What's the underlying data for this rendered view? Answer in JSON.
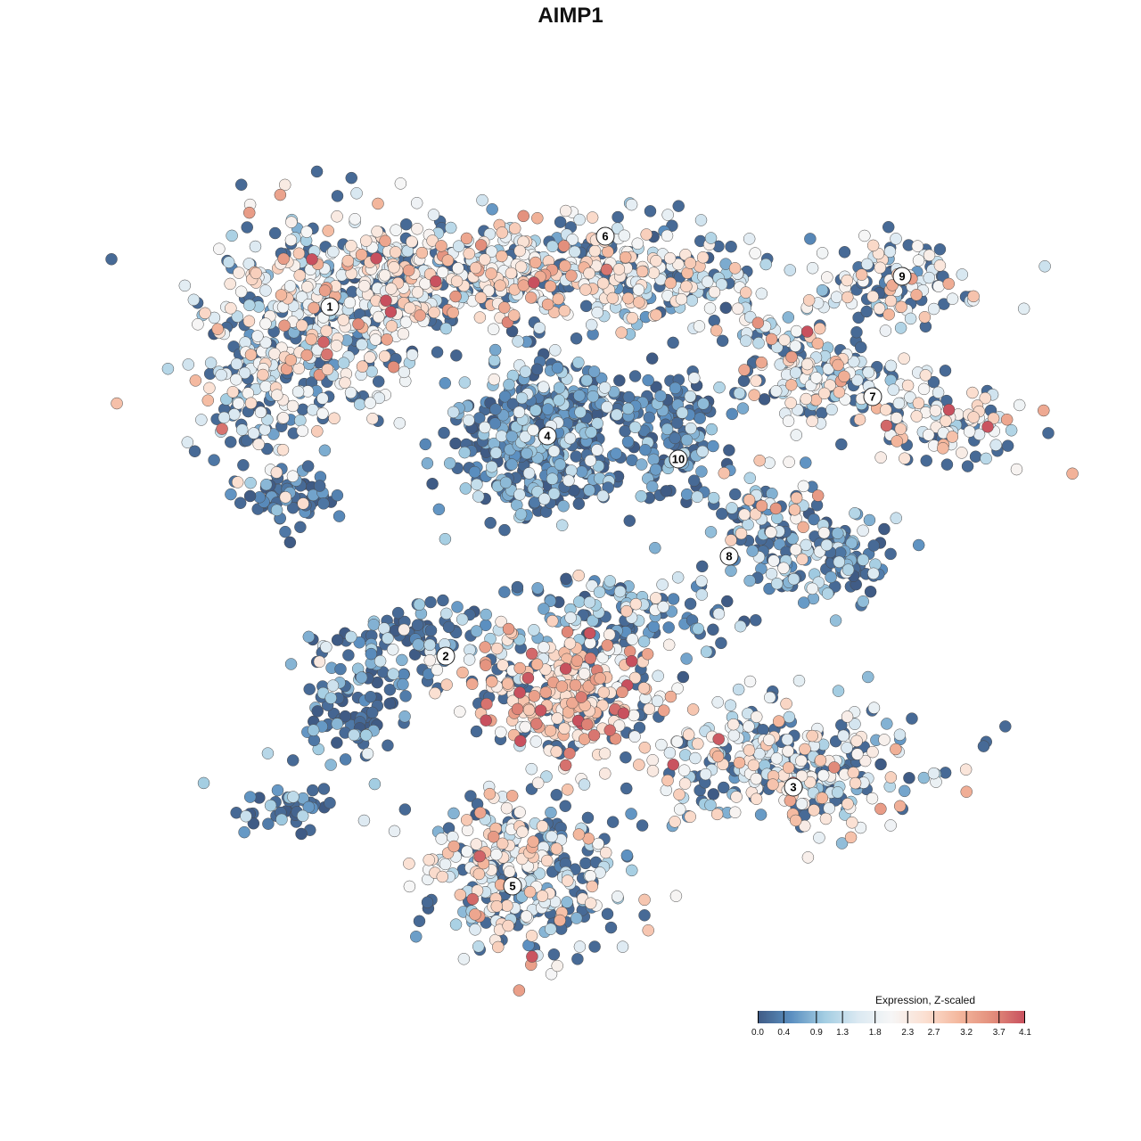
{
  "chart_data": {
    "type": "scatter",
    "title": "AIMP1",
    "xlim": [
      -64,
      64
    ],
    "ylim": [
      -64,
      64
    ],
    "grid": false,
    "axes_visible": false,
    "point_note_blobs": "density regions of the embedding; per-point values are sampled around the shown mean expression",
    "blobs": [
      {
        "cluster": "1",
        "cx": -28,
        "cy": 28,
        "sx": 9,
        "sy": 8,
        "n": 360,
        "mean": 1.8,
        "sd": 0.8
      },
      {
        "cluster": "1",
        "cx": -35,
        "cy": 20,
        "sx": 5,
        "sy": 6,
        "n": 110,
        "mean": 1.6,
        "sd": 0.8
      },
      {
        "cluster": "1",
        "cx": -31,
        "cy": 8,
        "sx": 4,
        "sy": 2,
        "n": 60,
        "mean": 0.3,
        "sd": 0.4
      },
      {
        "cluster": "1",
        "cx": -19,
        "cy": 32,
        "sx": 10,
        "sy": 4,
        "n": 160,
        "mean": 2.0,
        "sd": 0.8
      },
      {
        "cluster": "6",
        "cx": -5,
        "cy": 34,
        "sx": 14,
        "sy": 4,
        "n": 360,
        "mean": 2.0,
        "sd": 0.8
      },
      {
        "cluster": "6",
        "cx": 12,
        "cy": 32,
        "sx": 8,
        "sy": 4,
        "n": 120,
        "mean": 1.8,
        "sd": 0.8
      },
      {
        "cluster": "9",
        "cx": 36,
        "cy": 32,
        "sx": 6,
        "sy": 3.5,
        "n": 120,
        "mean": 1.9,
        "sd": 0.8
      },
      {
        "cluster": "7",
        "cx": 30,
        "cy": 21,
        "sx": 7,
        "sy": 3,
        "n": 120,
        "mean": 1.8,
        "sd": 0.8
      },
      {
        "cluster": "7",
        "cx": 42,
        "cy": 16,
        "sx": 6,
        "sy": 3,
        "n": 90,
        "mean": 2.2,
        "sd": 0.8
      },
      {
        "cluster": "7",
        "cx": 24,
        "cy": 25,
        "sx": 4,
        "sy": 3,
        "n": 50,
        "mean": 2.0,
        "sd": 0.8
      },
      {
        "cluster": "4",
        "cx": -3,
        "cy": 15,
        "sx": 6.5,
        "sy": 5.5,
        "n": 420,
        "mean": 0.6,
        "sd": 0.5
      },
      {
        "cluster": "10",
        "cx": 12,
        "cy": 12,
        "sx": 3,
        "sy": 4,
        "n": 70,
        "mean": 0.5,
        "sd": 0.5
      },
      {
        "cluster": "10",
        "cx": 10,
        "cy": 19,
        "sx": 7,
        "sy": 2,
        "n": 80,
        "mean": 0.4,
        "sd": 0.4
      },
      {
        "cluster": "8",
        "cx": 22,
        "cy": 7,
        "sx": 4,
        "sy": 4,
        "n": 70,
        "mean": 1.5,
        "sd": 1.0
      },
      {
        "cluster": "8",
        "cx": 29,
        "cy": 1,
        "sx": 5,
        "sy": 3,
        "n": 130,
        "mean": 0.8,
        "sd": 0.6
      },
      {
        "cluster": "2",
        "cx": -18,
        "cy": -8,
        "sx": 7,
        "sy": 3,
        "n": 100,
        "mean": 0.8,
        "sd": 0.6
      },
      {
        "cluster": "2",
        "cx": -24,
        "cy": -16,
        "sx": 4,
        "sy": 4,
        "n": 80,
        "mean": 0.5,
        "sd": 0.5
      },
      {
        "cluster": "2",
        "cx": -31,
        "cy": -27,
        "sx": 4,
        "sy": 2,
        "n": 40,
        "mean": 0.5,
        "sd": 0.6
      },
      {
        "cluster": "3",
        "cx": -1,
        "cy": -14,
        "sx": 7,
        "sy": 5,
        "n": 320,
        "mean": 2.6,
        "sd": 0.7
      },
      {
        "cluster": "3",
        "cx": 6,
        "cy": -5,
        "sx": 8,
        "sy": 3,
        "n": 130,
        "mean": 0.8,
        "sd": 0.6
      },
      {
        "cluster": "3",
        "cx": 24,
        "cy": -22,
        "sx": 10,
        "sy": 5,
        "n": 320,
        "mean": 1.8,
        "sd": 0.8
      },
      {
        "cluster": "5",
        "cx": -5,
        "cy": -34,
        "sx": 8,
        "sy": 6,
        "n": 320,
        "mean": 1.8,
        "sd": 0.8
      }
    ],
    "cluster_labels": [
      {
        "label": "1",
        "x": -27,
        "y": 29.6
      },
      {
        "label": "2",
        "x": -14,
        "y": -9.6
      },
      {
        "label": "3",
        "x": 25,
        "y": -24.3
      },
      {
        "label": "4",
        "x": -2.6,
        "y": 15.1
      },
      {
        "label": "5",
        "x": -6.5,
        "y": -35.4
      },
      {
        "label": "6",
        "x": 3.9,
        "y": 37.5
      },
      {
        "label": "7",
        "x": 33.9,
        "y": 19.5
      },
      {
        "label": "8",
        "x": 17.8,
        "y": 1.6
      },
      {
        "label": "9",
        "x": 37.2,
        "y": 33.0
      },
      {
        "label": "10",
        "x": 12.1,
        "y": 12.5
      }
    ],
    "colorbar": {
      "title": "Expression, Z-scaled",
      "range": [
        0,
        4.1
      ],
      "ticks": [
        "0.0",
        "0.4",
        "0.9",
        "1.3",
        "1.8",
        "2.3",
        "2.7",
        "3.2",
        "3.7",
        "4.1"
      ],
      "colors": [
        "#3f5b85",
        "#5b8fc0",
        "#a3cde2",
        "#dbe9f2",
        "#f6f6f6",
        "#fbe0d2",
        "#f4b89e",
        "#e38f7c",
        "#c8505e"
      ]
    }
  }
}
